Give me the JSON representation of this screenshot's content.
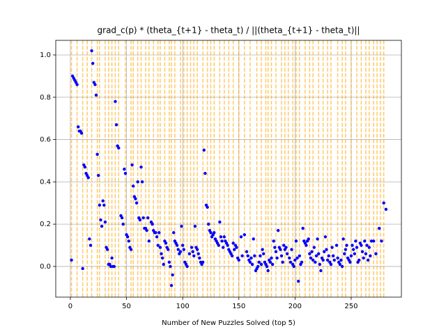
{
  "chart_data": {
    "type": "scatter",
    "title": "grad_c(p) * (theta_{t+1} - theta_t) / ||(theta_{t+1} - theta_t)||",
    "x_label": "Number of New Puzzles Solved (top 5)",
    "xlim": [
      -13,
      294.7
    ],
    "ylim": [
      -0.145,
      1.069
    ],
    "xticks": [
      0,
      50,
      100,
      150,
      200,
      250
    ],
    "yticks": [
      {
        "value": 0,
        "label": "0.0"
      },
      0.2,
      0.4,
      0.6,
      0.8,
      {
        "value": 1,
        "label": "1.0"
      }
    ],
    "grid": true,
    "vline_color": "#ffa500",
    "vlines": [
      1,
      6,
      11,
      15,
      19,
      24,
      26,
      31,
      34,
      37,
      40,
      43,
      49,
      54,
      56,
      60,
      63,
      67,
      70,
      74,
      78,
      80,
      84,
      88,
      90,
      93,
      98,
      101,
      104,
      107,
      110,
      113,
      118,
      122,
      125,
      128,
      133,
      137,
      141,
      145,
      150,
      155,
      160,
      166,
      170,
      174,
      176,
      179,
      183,
      188,
      191,
      194,
      198,
      201,
      204,
      209,
      213,
      216,
      221,
      225,
      229,
      232,
      238,
      242,
      245,
      250,
      255,
      259,
      263,
      266,
      270,
      273,
      276,
      279
    ],
    "series": [
      {
        "color": "#0000ff",
        "x": [
          1,
          2,
          3,
          4,
          5,
          6,
          7,
          8,
          9,
          10,
          11,
          12,
          13,
          14,
          15,
          16,
          17,
          18,
          19,
          20,
          21,
          22,
          23,
          24,
          25,
          26,
          27,
          28,
          29,
          30,
          31,
          32,
          33,
          34,
          35,
          36,
          37,
          38,
          39,
          40,
          41,
          42,
          43,
          45,
          46,
          47,
          48,
          49,
          50,
          51,
          52,
          53,
          54,
          55,
          56,
          57,
          58,
          59,
          60,
          61,
          62,
          63,
          64,
          65,
          66,
          67,
          68,
          69,
          70,
          72,
          73,
          74,
          75,
          76,
          77,
          78,
          79,
          80,
          81,
          82,
          83,
          84,
          85,
          86,
          87,
          88,
          89,
          90,
          91,
          92,
          93,
          94,
          95,
          96,
          97,
          98,
          99,
          100,
          101,
          102,
          103,
          104,
          106,
          108,
          109,
          110,
          111,
          112,
          113,
          114,
          115,
          116,
          117,
          118,
          119,
          120,
          121,
          122,
          123,
          124,
          125,
          126,
          127,
          128,
          129,
          130,
          131,
          132,
          133,
          134,
          135,
          136,
          137,
          138,
          139,
          140,
          141,
          142,
          143,
          144,
          145,
          146,
          147,
          148,
          149,
          150,
          152,
          153,
          155,
          157,
          158,
          159,
          160,
          161,
          162,
          163,
          164,
          165,
          166,
          167,
          168,
          169,
          170,
          171,
          172,
          173,
          174,
          175,
          176,
          177,
          178,
          179,
          180,
          181,
          182,
          183,
          184,
          185,
          186,
          187,
          188,
          189,
          190,
          191,
          192,
          193,
          195,
          196,
          197,
          198,
          199,
          200,
          201,
          202,
          203,
          204,
          205,
          206,
          207,
          208,
          209,
          210,
          211,
          212,
          213,
          214,
          215,
          216,
          217,
          218,
          219,
          220,
          221,
          222,
          223,
          224,
          225,
          226,
          227,
          228,
          229,
          230,
          231,
          232,
          233,
          234,
          235,
          237,
          238,
          239,
          240,
          241,
          242,
          243,
          244,
          245,
          246,
          247,
          248,
          249,
          250,
          251,
          252,
          253,
          254,
          255,
          256,
          257,
          258,
          259,
          260,
          261,
          262,
          263,
          264,
          265,
          266,
          267,
          268,
          270,
          272,
          275,
          277,
          279,
          281
        ],
        "values": [
          0.03,
          0.9,
          0.89,
          0.88,
          0.87,
          0.86,
          0.66,
          0.64,
          0.64,
          0.63,
          -0.01,
          0.48,
          0.47,
          0.44,
          0.43,
          0.42,
          0.13,
          0.1,
          1.02,
          0.96,
          0.87,
          0.86,
          0.81,
          0.53,
          0.43,
          0.29,
          0.22,
          0.19,
          0.31,
          0.29,
          0.21,
          0.09,
          0.08,
          0.01,
          0.01,
          0.0,
          0.04,
          0.0,
          0.0,
          0.78,
          0.67,
          0.57,
          0.56,
          0.24,
          0.23,
          0.2,
          0.46,
          0.44,
          0.15,
          0.14,
          0.12,
          0.09,
          0.08,
          0.48,
          0.38,
          0.33,
          0.32,
          0.3,
          0.4,
          0.23,
          0.22,
          0.47,
          0.4,
          0.23,
          0.18,
          0.18,
          0.17,
          0.23,
          0.12,
          0.21,
          0.2,
          0.17,
          0.16,
          0.16,
          0.14,
          0.1,
          0.16,
          0.09,
          0.06,
          0.04,
          0.01,
          0.12,
          0.11,
          0.09,
          0.08,
          0.02,
          0.0,
          -0.09,
          -0.04,
          0.16,
          0.12,
          0.11,
          0.1,
          0.08,
          0.06,
          0.07,
          0.19,
          0.1,
          0.08,
          0.02,
          0.01,
          0.0,
          0.06,
          0.09,
          0.07,
          0.05,
          0.19,
          0.09,
          0.08,
          0.06,
          0.04,
          0.02,
          0.01,
          0.02,
          0.55,
          0.44,
          0.29,
          0.28,
          0.2,
          0.17,
          0.16,
          0.14,
          0.15,
          0.16,
          0.13,
          0.12,
          0.11,
          0.1,
          0.21,
          0.14,
          0.12,
          0.09,
          0.14,
          0.12,
          0.11,
          0.1,
          0.08,
          0.07,
          0.06,
          0.05,
          0.11,
          0.08,
          0.1,
          0.09,
          0.04,
          0.03,
          0.14,
          0.05,
          0.15,
          0.07,
          0.05,
          0.03,
          0.02,
          0.04,
          0.01,
          0.13,
          0.05,
          -0.02,
          -0.01,
          0.0,
          0.02,
          0.05,
          0.01,
          0.08,
          0.06,
          0.02,
          0.01,
          0.0,
          -0.02,
          0.03,
          0.02,
          0.04,
          0.01,
          0.12,
          0.09,
          0.07,
          0.04,
          0.17,
          0.09,
          0.08,
          0.05,
          0.02,
          0.1,
          0.08,
          0.09,
          0.06,
          0.04,
          0.02,
          0.08,
          0.01,
          0.0,
          0.03,
          0.12,
          0.04,
          -0.07,
          0.05,
          0.01,
          0.02,
          0.18,
          0.12,
          0.11,
          0.1,
          0.12,
          0.13,
          0.06,
          0.04,
          0.07,
          0.03,
          0.09,
          0.02,
          0.05,
          0.13,
          0.06,
          0.01,
          -0.02,
          0.04,
          0.03,
          0.07,
          0.14,
          0.08,
          0.03,
          0.05,
          0.02,
          0.01,
          0.09,
          0.05,
          0.03,
          0.1,
          0.04,
          0.02,
          0.01,
          0.03,
          0.0,
          0.13,
          0.06,
          0.08,
          0.1,
          0.04,
          0.03,
          0.02,
          0.05,
          0.1,
          0.08,
          0.06,
          0.12,
          0.09,
          0.02,
          0.03,
          0.11,
          0.1,
          0.07,
          0.04,
          0.12,
          0.06,
          0.1,
          0.03,
          0.09,
          0.05,
          0.12,
          0.12,
          0.06,
          0.18,
          0.12,
          0.3,
          0.27
        ]
      }
    ]
  }
}
